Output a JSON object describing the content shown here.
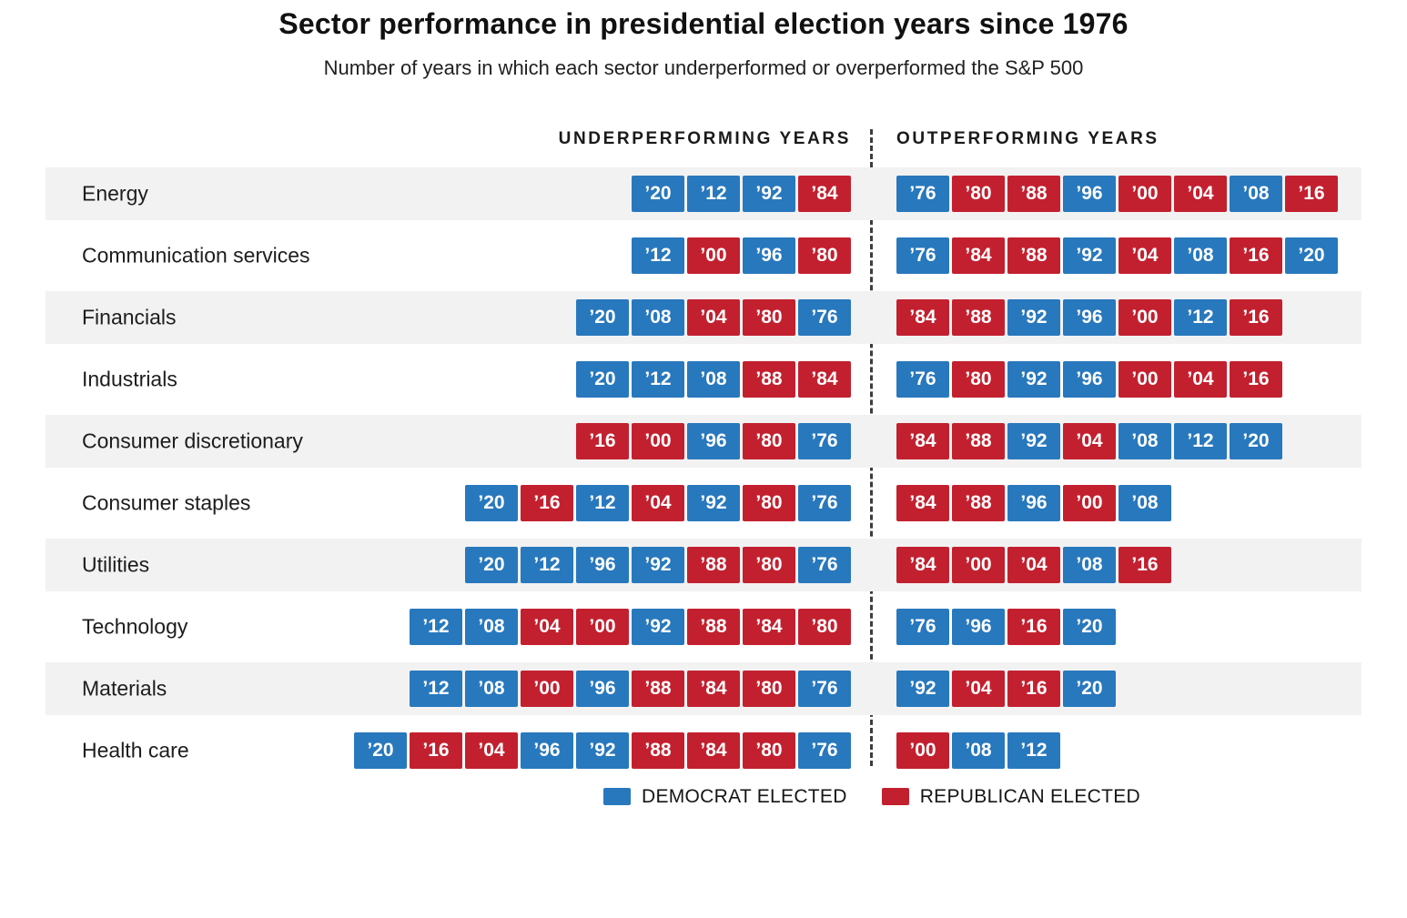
{
  "title": "Sector performance in presidential election years since 1976",
  "subtitle": "Number of years in which each sector underperformed or overperformed the S&P 500",
  "columns": {
    "left": "UNDERPERFORMING YEARS",
    "right": "OUTPERFORMING YEARS"
  },
  "legend": {
    "democrat": {
      "label": "DEMOCRAT ELECTED",
      "color": "#2878bd"
    },
    "republican": {
      "label": "REPUBLICAN ELECTED",
      "color": "#c3202f"
    }
  },
  "chart_data": {
    "type": "table",
    "title": "Sector performance in presidential election years since 1976",
    "subtitle": "Number of years in which each sector underperformed or overperformed the S&P 500",
    "party_key": {
      "D": "Democrat elected",
      "R": "Republican elected"
    },
    "legend_position": "bottom",
    "rows": [
      {
        "sector": "Energy",
        "underperforming": [
          {
            "year": "’20",
            "party": "D"
          },
          {
            "year": "’12",
            "party": "D"
          },
          {
            "year": "’92",
            "party": "D"
          },
          {
            "year": "’84",
            "party": "R"
          }
        ],
        "outperforming": [
          {
            "year": "’76",
            "party": "D"
          },
          {
            "year": "’80",
            "party": "R"
          },
          {
            "year": "’88",
            "party": "R"
          },
          {
            "year": "’96",
            "party": "D"
          },
          {
            "year": "’00",
            "party": "R"
          },
          {
            "year": "’04",
            "party": "R"
          },
          {
            "year": "’08",
            "party": "D"
          },
          {
            "year": "’16",
            "party": "R"
          }
        ]
      },
      {
        "sector": "Communication services",
        "underperforming": [
          {
            "year": "’12",
            "party": "D"
          },
          {
            "year": "’00",
            "party": "R"
          },
          {
            "year": "’96",
            "party": "D"
          },
          {
            "year": "’80",
            "party": "R"
          }
        ],
        "outperforming": [
          {
            "year": "’76",
            "party": "D"
          },
          {
            "year": "’84",
            "party": "R"
          },
          {
            "year": "’88",
            "party": "R"
          },
          {
            "year": "’92",
            "party": "D"
          },
          {
            "year": "’04",
            "party": "R"
          },
          {
            "year": "’08",
            "party": "D"
          },
          {
            "year": "’16",
            "party": "R"
          },
          {
            "year": "’20",
            "party": "D"
          }
        ]
      },
      {
        "sector": "Financials",
        "underperforming": [
          {
            "year": "’20",
            "party": "D"
          },
          {
            "year": "’08",
            "party": "D"
          },
          {
            "year": "’04",
            "party": "R"
          },
          {
            "year": "’80",
            "party": "R"
          },
          {
            "year": "’76",
            "party": "D"
          }
        ],
        "outperforming": [
          {
            "year": "’84",
            "party": "R"
          },
          {
            "year": "’88",
            "party": "R"
          },
          {
            "year": "’92",
            "party": "D"
          },
          {
            "year": "’96",
            "party": "D"
          },
          {
            "year": "’00",
            "party": "R"
          },
          {
            "year": "’12",
            "party": "D"
          },
          {
            "year": "’16",
            "party": "R"
          }
        ]
      },
      {
        "sector": "Industrials",
        "underperforming": [
          {
            "year": "’20",
            "party": "D"
          },
          {
            "year": "’12",
            "party": "D"
          },
          {
            "year": "’08",
            "party": "D"
          },
          {
            "year": "’88",
            "party": "R"
          },
          {
            "year": "’84",
            "party": "R"
          }
        ],
        "outperforming": [
          {
            "year": "’76",
            "party": "D"
          },
          {
            "year": "’80",
            "party": "R"
          },
          {
            "year": "’92",
            "party": "D"
          },
          {
            "year": "’96",
            "party": "D"
          },
          {
            "year": "’00",
            "party": "R"
          },
          {
            "year": "’04",
            "party": "R"
          },
          {
            "year": "’16",
            "party": "R"
          }
        ]
      },
      {
        "sector": "Consumer discretionary",
        "underperforming": [
          {
            "year": "’16",
            "party": "R"
          },
          {
            "year": "’00",
            "party": "R"
          },
          {
            "year": "’96",
            "party": "D"
          },
          {
            "year": "’80",
            "party": "R"
          },
          {
            "year": "’76",
            "party": "D"
          }
        ],
        "outperforming": [
          {
            "year": "’84",
            "party": "R"
          },
          {
            "year": "’88",
            "party": "R"
          },
          {
            "year": "’92",
            "party": "D"
          },
          {
            "year": "’04",
            "party": "R"
          },
          {
            "year": "’08",
            "party": "D"
          },
          {
            "year": "’12",
            "party": "D"
          },
          {
            "year": "’20",
            "party": "D"
          }
        ]
      },
      {
        "sector": "Consumer staples",
        "underperforming": [
          {
            "year": "’20",
            "party": "D"
          },
          {
            "year": "’16",
            "party": "R"
          },
          {
            "year": "’12",
            "party": "D"
          },
          {
            "year": "’04",
            "party": "R"
          },
          {
            "year": "’92",
            "party": "D"
          },
          {
            "year": "’80",
            "party": "R"
          },
          {
            "year": "’76",
            "party": "D"
          }
        ],
        "outperforming": [
          {
            "year": "’84",
            "party": "R"
          },
          {
            "year": "’88",
            "party": "R"
          },
          {
            "year": "’96",
            "party": "D"
          },
          {
            "year": "’00",
            "party": "R"
          },
          {
            "year": "’08",
            "party": "D"
          }
        ]
      },
      {
        "sector": "Utilities",
        "underperforming": [
          {
            "year": "’20",
            "party": "D"
          },
          {
            "year": "’12",
            "party": "D"
          },
          {
            "year": "’96",
            "party": "D"
          },
          {
            "year": "’92",
            "party": "D"
          },
          {
            "year": "’88",
            "party": "R"
          },
          {
            "year": "’80",
            "party": "R"
          },
          {
            "year": "’76",
            "party": "D"
          }
        ],
        "outperforming": [
          {
            "year": "’84",
            "party": "R"
          },
          {
            "year": "’00",
            "party": "R"
          },
          {
            "year": "’04",
            "party": "R"
          },
          {
            "year": "’08",
            "party": "D"
          },
          {
            "year": "’16",
            "party": "R"
          }
        ]
      },
      {
        "sector": "Technology",
        "underperforming": [
          {
            "year": "’12",
            "party": "D"
          },
          {
            "year": "’08",
            "party": "D"
          },
          {
            "year": "’04",
            "party": "R"
          },
          {
            "year": "’00",
            "party": "R"
          },
          {
            "year": "’92",
            "party": "D"
          },
          {
            "year": "’88",
            "party": "R"
          },
          {
            "year": "’84",
            "party": "R"
          },
          {
            "year": "’80",
            "party": "R"
          }
        ],
        "outperforming": [
          {
            "year": "’76",
            "party": "D"
          },
          {
            "year": "’96",
            "party": "D"
          },
          {
            "year": "’16",
            "party": "R"
          },
          {
            "year": "’20",
            "party": "D"
          }
        ]
      },
      {
        "sector": "Materials",
        "underperforming": [
          {
            "year": "’12",
            "party": "D"
          },
          {
            "year": "’08",
            "party": "D"
          },
          {
            "year": "’00",
            "party": "R"
          },
          {
            "year": "’96",
            "party": "D"
          },
          {
            "year": "’88",
            "party": "R"
          },
          {
            "year": "’84",
            "party": "R"
          },
          {
            "year": "’80",
            "party": "R"
          },
          {
            "year": "’76",
            "party": "D"
          }
        ],
        "outperforming": [
          {
            "year": "’92",
            "party": "D"
          },
          {
            "year": "’04",
            "party": "R"
          },
          {
            "year": "’16",
            "party": "R"
          },
          {
            "year": "’20",
            "party": "D"
          }
        ]
      },
      {
        "sector": "Health care",
        "underperforming": [
          {
            "year": "’20",
            "party": "D"
          },
          {
            "year": "’16",
            "party": "R"
          },
          {
            "year": "’04",
            "party": "R"
          },
          {
            "year": "’96",
            "party": "D"
          },
          {
            "year": "’92",
            "party": "D"
          },
          {
            "year": "’88",
            "party": "R"
          },
          {
            "year": "’84",
            "party": "R"
          },
          {
            "year": "’80",
            "party": "R"
          },
          {
            "year": "’76",
            "party": "D"
          }
        ],
        "outperforming": [
          {
            "year": "’00",
            "party": "R"
          },
          {
            "year": "’08",
            "party": "D"
          },
          {
            "year": "’12",
            "party": "D"
          }
        ]
      }
    ]
  }
}
